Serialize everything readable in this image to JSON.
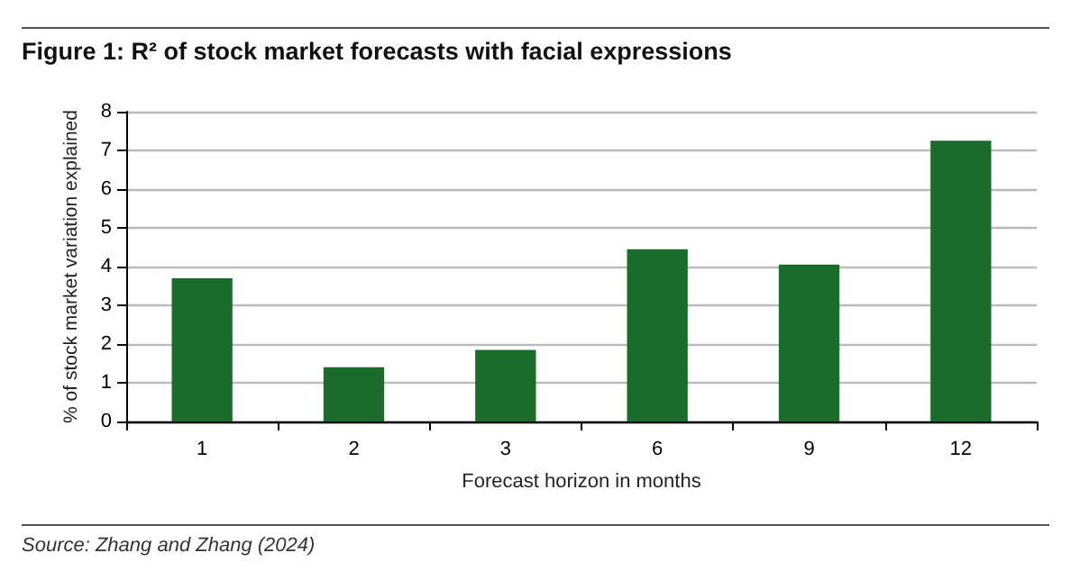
{
  "chart_data": {
    "type": "bar",
    "title": "Figure 1: R² of stock market forecasts with facial expressions",
    "xlabel": "Forecast horizon in months",
    "ylabel": "% of stock market variation explained",
    "categories": [
      "1",
      "2",
      "3",
      "6",
      "9",
      "12"
    ],
    "values": [
      3.7,
      1.4,
      1.85,
      4.45,
      4.05,
      7.25
    ],
    "color": "#1a6b2c",
    "ylim": [
      0,
      8
    ],
    "yticks": [
      0,
      1,
      2,
      3,
      4,
      5,
      6,
      7,
      8
    ],
    "grid": "y",
    "annotations": [
      "Source: Zhang and Zhang (2024)"
    ]
  }
}
